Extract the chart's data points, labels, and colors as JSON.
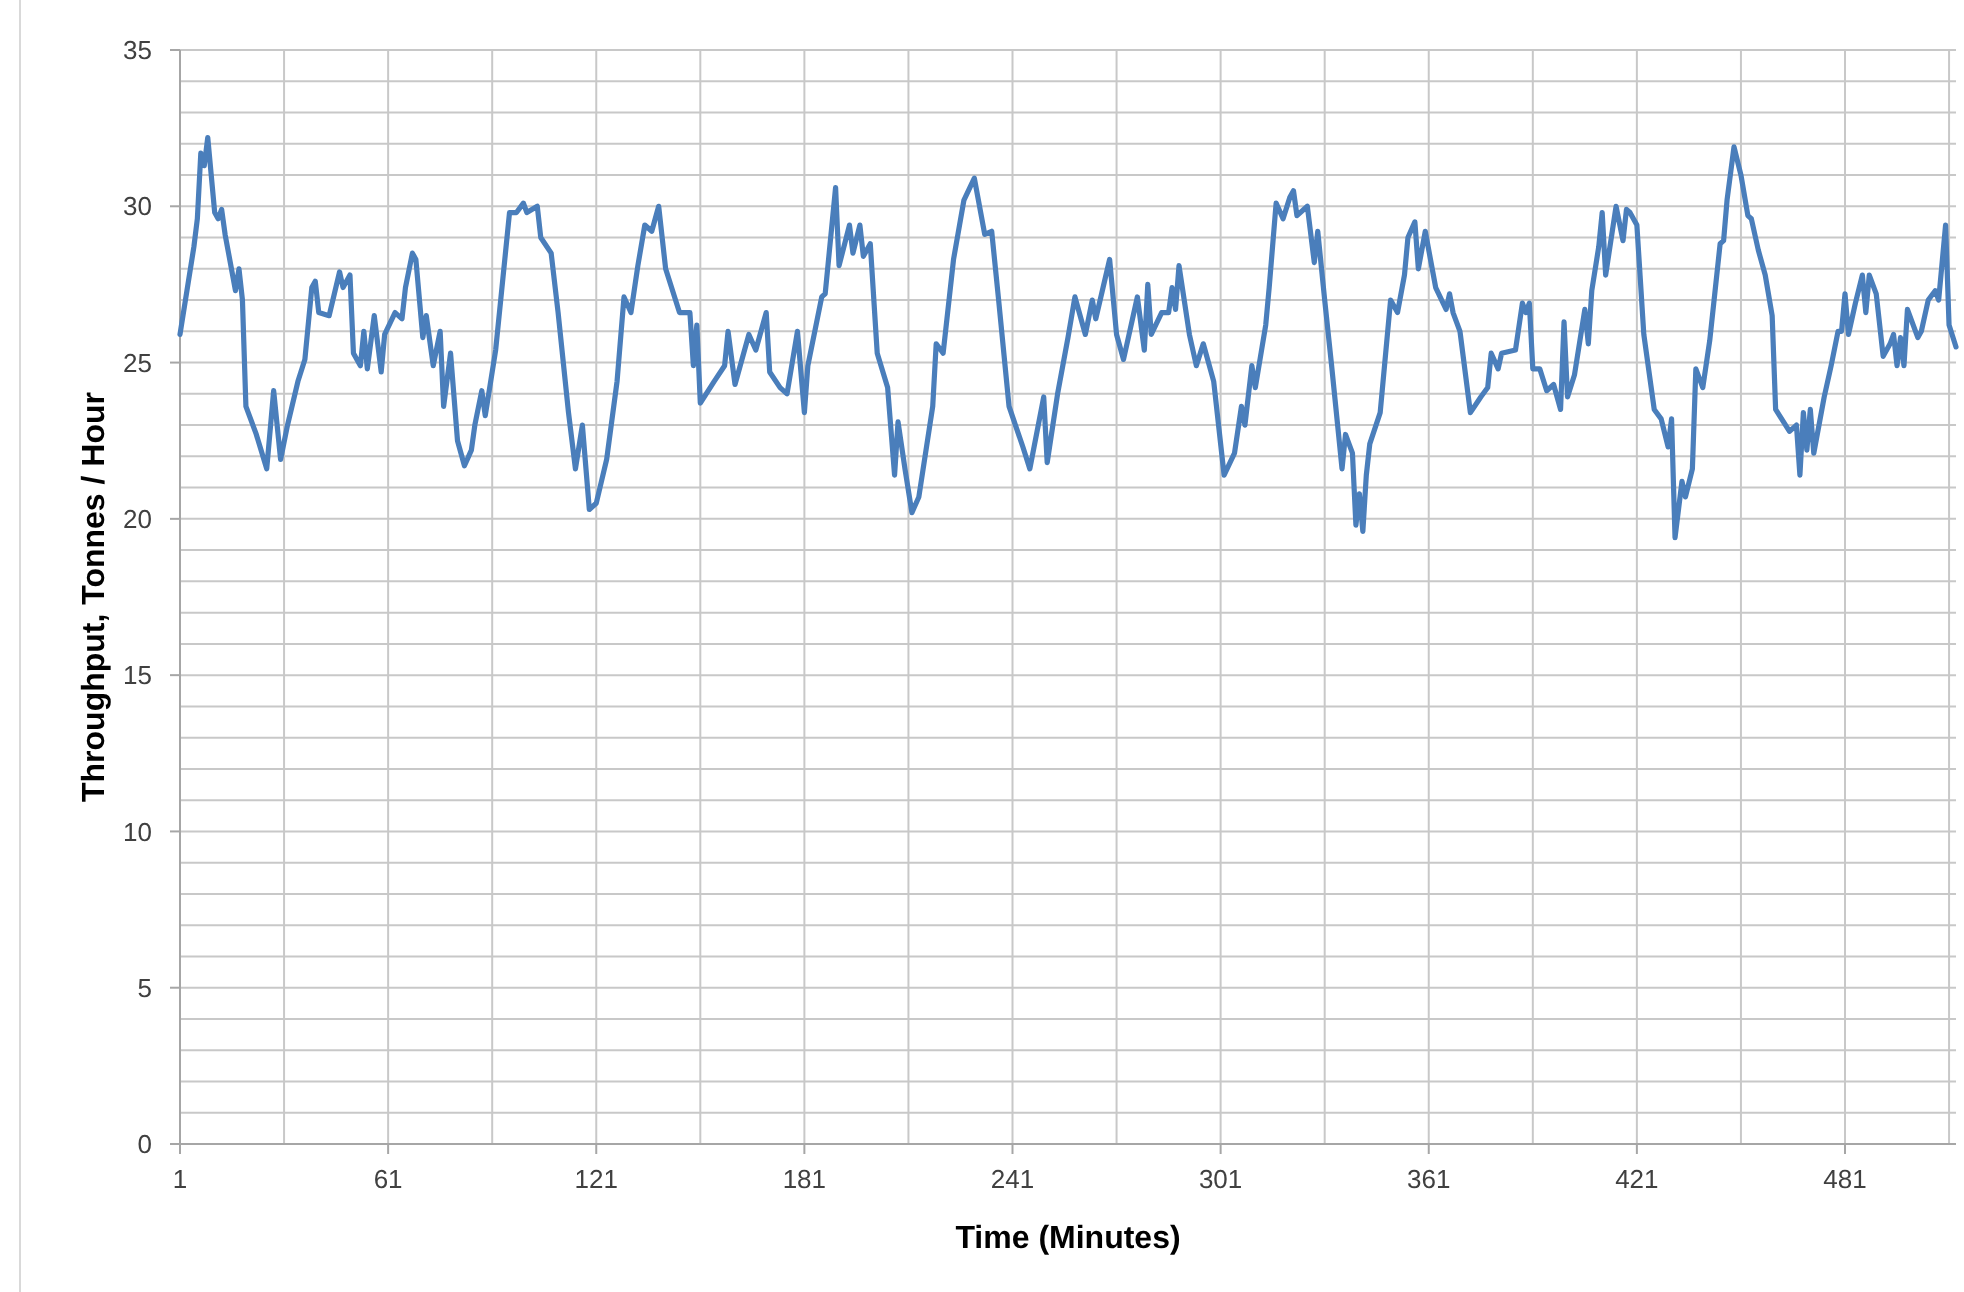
{
  "chart_data": {
    "type": "line",
    "xlabel": "Time (Minutes)",
    "ylabel": "Throughput, Tonnes / Hour",
    "xlim": [
      1,
      513
    ],
    "ylim": [
      0,
      35
    ],
    "xticks": [
      1,
      {
        "value": 31,
        "label": null
      },
      61,
      {
        "value": 91,
        "label": null
      },
      121,
      {
        "value": 151,
        "label": null
      },
      181,
      {
        "value": 211,
        "label": null
      },
      241,
      {
        "value": 271,
        "label": null
      },
      301,
      {
        "value": 331,
        "label": null
      },
      361,
      {
        "value": 391,
        "label": null
      },
      421,
      {
        "value": 451,
        "label": null
      },
      481,
      {
        "value": 511,
        "label": null
      }
    ],
    "yticks": [
      0,
      {
        "value": 1,
        "label": null
      },
      {
        "value": 2,
        "label": null
      },
      {
        "value": 3,
        "label": null
      },
      {
        "value": 4,
        "label": null
      },
      5,
      {
        "value": 6,
        "label": null
      },
      {
        "value": 7,
        "label": null
      },
      {
        "value": 8,
        "label": null
      },
      {
        "value": 9,
        "label": null
      },
      10,
      {
        "value": 11,
        "label": null
      },
      {
        "value": 12,
        "label": null
      },
      {
        "value": 13,
        "label": null
      },
      {
        "value": 14,
        "label": null
      },
      15,
      {
        "value": 16,
        "label": null
      },
      {
        "value": 17,
        "label": null
      },
      {
        "value": 18,
        "label": null
      },
      {
        "value": 19,
        "label": null
      },
      20,
      {
        "value": 21,
        "label": null
      },
      {
        "value": 22,
        "label": null
      },
      {
        "value": 23,
        "label": null
      },
      {
        "value": 24,
        "label": null
      },
      25,
      {
        "value": 26,
        "label": null
      },
      {
        "value": 27,
        "label": null
      },
      {
        "value": 28,
        "label": null
      },
      {
        "value": 29,
        "label": null
      },
      30,
      {
        "value": 31,
        "label": null
      },
      {
        "value": 32,
        "label": null
      },
      {
        "value": 33,
        "label": null
      },
      {
        "value": 34,
        "label": null
      },
      35
    ],
    "grid": true,
    "marker": "none",
    "line_style": "solid",
    "series": [
      {
        "color": "#4a7ebb",
        "x": [
          1,
          5,
          6,
          7,
          8,
          9,
          11,
          12,
          13,
          14,
          17,
          18,
          19,
          20,
          23,
          26,
          28,
          30,
          32,
          35,
          37,
          39,
          40,
          41,
          44,
          47,
          48,
          50,
          51,
          53,
          54,
          55,
          57,
          59,
          60,
          63,
          65,
          66,
          68,
          69,
          71,
          72,
          74,
          76,
          77,
          79,
          81,
          83,
          85,
          86,
          88,
          89,
          92,
          96,
          98,
          100,
          101,
          104,
          105,
          108,
          110,
          113,
          115,
          117,
          119,
          121,
          124,
          127,
          129,
          131,
          133,
          135,
          137,
          139,
          141,
          145,
          148,
          149,
          150,
          151,
          155,
          158,
          159,
          161,
          165,
          167,
          170,
          171,
          174,
          176,
          179,
          181,
          182,
          186,
          187,
          190,
          191,
          194,
          195,
          197,
          198,
          200,
          202,
          205,
          207,
          208,
          210,
          212,
          214,
          218,
          219,
          221,
          224,
          227,
          230,
          233,
          235,
          237,
          240,
          244,
          246,
          250,
          251,
          254,
          257,
          259,
          262,
          264,
          265,
          269,
          271,
          273,
          277,
          279,
          280,
          281,
          284,
          286,
          287,
          288,
          289,
          292,
          294,
          296,
          299,
          302,
          305,
          307,
          308,
          310,
          311,
          314,
          315,
          317,
          319,
          321,
          322,
          323,
          326,
          328,
          329,
          331,
          333,
          336,
          337,
          339,
          340,
          341,
          342,
          343,
          344,
          347,
          350,
          352,
          354,
          355,
          357,
          358,
          360,
          363,
          366,
          367,
          368,
          370,
          373,
          376,
          378,
          379,
          381,
          382,
          386,
          388,
          389,
          390,
          391,
          393,
          395,
          397,
          399,
          400,
          401,
          403,
          406,
          407,
          408,
          410,
          411,
          412,
          415,
          417,
          418,
          419,
          421,
          423,
          426,
          428,
          430,
          431,
          432,
          434,
          435,
          437,
          438,
          440,
          442,
          445,
          446,
          447,
          449,
          451,
          453,
          454,
          456,
          458,
          460,
          461,
          465,
          467,
          468,
          469,
          470,
          471,
          472,
          475,
          477,
          479,
          480,
          481,
          482,
          484,
          486,
          487,
          488,
          490,
          492,
          494,
          495,
          496,
          497,
          498,
          499,
          502,
          503,
          505,
          507,
          508,
          510,
          511,
          513
        ],
        "values": [
          25.9,
          28.7,
          29.6,
          31.7,
          31.3,
          32.2,
          29.8,
          29.6,
          29.9,
          29.1,
          27.3,
          28.0,
          27.0,
          23.6,
          22.7,
          21.6,
          24.1,
          21.9,
          23.0,
          24.4,
          25.1,
          27.4,
          27.6,
          26.6,
          26.5,
          27.9,
          27.4,
          27.8,
          25.3,
          24.9,
          26.0,
          24.8,
          26.5,
          24.7,
          25.9,
          26.6,
          26.4,
          27.4,
          28.5,
          28.3,
          25.8,
          26.5,
          24.9,
          26.0,
          23.6,
          25.3,
          22.5,
          21.7,
          22.2,
          23.0,
          24.1,
          23.3,
          25.4,
          29.8,
          29.8,
          30.1,
          29.8,
          30.0,
          29.0,
          28.5,
          26.6,
          23.4,
          21.6,
          23.0,
          20.3,
          20.5,
          21.9,
          24.4,
          27.1,
          26.6,
          28.1,
          29.4,
          29.2,
          30.0,
          28.0,
          26.6,
          26.6,
          24.9,
          26.2,
          23.7,
          24.4,
          24.9,
          26.0,
          24.3,
          25.9,
          25.4,
          26.6,
          24.7,
          24.2,
          24.0,
          26.0,
          23.4,
          24.9,
          27.1,
          27.2,
          30.6,
          28.1,
          29.4,
          28.5,
          29.4,
          28.4,
          28.8,
          25.3,
          24.2,
          21.4,
          23.1,
          21.6,
          20.2,
          20.7,
          23.6,
          25.6,
          25.3,
          28.3,
          30.2,
          30.9,
          29.1,
          29.2,
          27.0,
          23.6,
          22.3,
          21.6,
          23.9,
          21.8,
          24.0,
          25.8,
          27.1,
          25.9,
          27.0,
          26.4,
          28.3,
          25.9,
          25.1,
          27.1,
          25.4,
          27.5,
          25.9,
          26.6,
          26.6,
          27.4,
          26.7,
          28.1,
          25.9,
          24.9,
          25.6,
          24.4,
          21.4,
          22.1,
          23.6,
          23.0,
          24.9,
          24.2,
          26.2,
          27.4,
          30.1,
          29.6,
          30.3,
          30.5,
          29.7,
          30.0,
          28.2,
          29.2,
          27.0,
          24.9,
          21.6,
          22.7,
          22.1,
          19.8,
          20.8,
          19.6,
          21.4,
          22.4,
          23.4,
          27.0,
          26.6,
          27.8,
          29.0,
          29.5,
          28.0,
          29.2,
          27.4,
          26.7,
          27.2,
          26.6,
          26.0,
          23.4,
          23.9,
          24.2,
          25.3,
          24.8,
          25.3,
          25.4,
          26.9,
          26.6,
          26.9,
          24.8,
          24.8,
          24.1,
          24.3,
          23.5,
          26.3,
          23.9,
          24.6,
          26.7,
          25.6,
          27.3,
          28.7,
          29.8,
          27.8,
          30.0,
          28.9,
          29.9,
          29.8,
          29.4,
          25.9,
          23.5,
          23.2,
          22.3,
          23.2,
          19.4,
          21.2,
          20.7,
          21.6,
          24.8,
          24.2,
          25.7,
          28.8,
          28.9,
          30.2,
          31.9,
          31.0,
          29.7,
          29.6,
          28.6,
          27.8,
          26.5,
          23.5,
          22.8,
          23.0,
          21.4,
          23.4,
          22.2,
          23.5,
          22.1,
          23.9,
          24.9,
          26.0,
          26.0,
          27.2,
          25.9,
          26.9,
          27.8,
          26.6,
          27.8,
          27.2,
          25.2,
          25.6,
          25.9,
          24.9,
          25.8,
          24.9,
          26.7,
          25.8,
          26.0,
          27.0,
          27.3,
          27.0,
          29.4,
          26.2,
          25.5
        ]
      }
    ]
  }
}
